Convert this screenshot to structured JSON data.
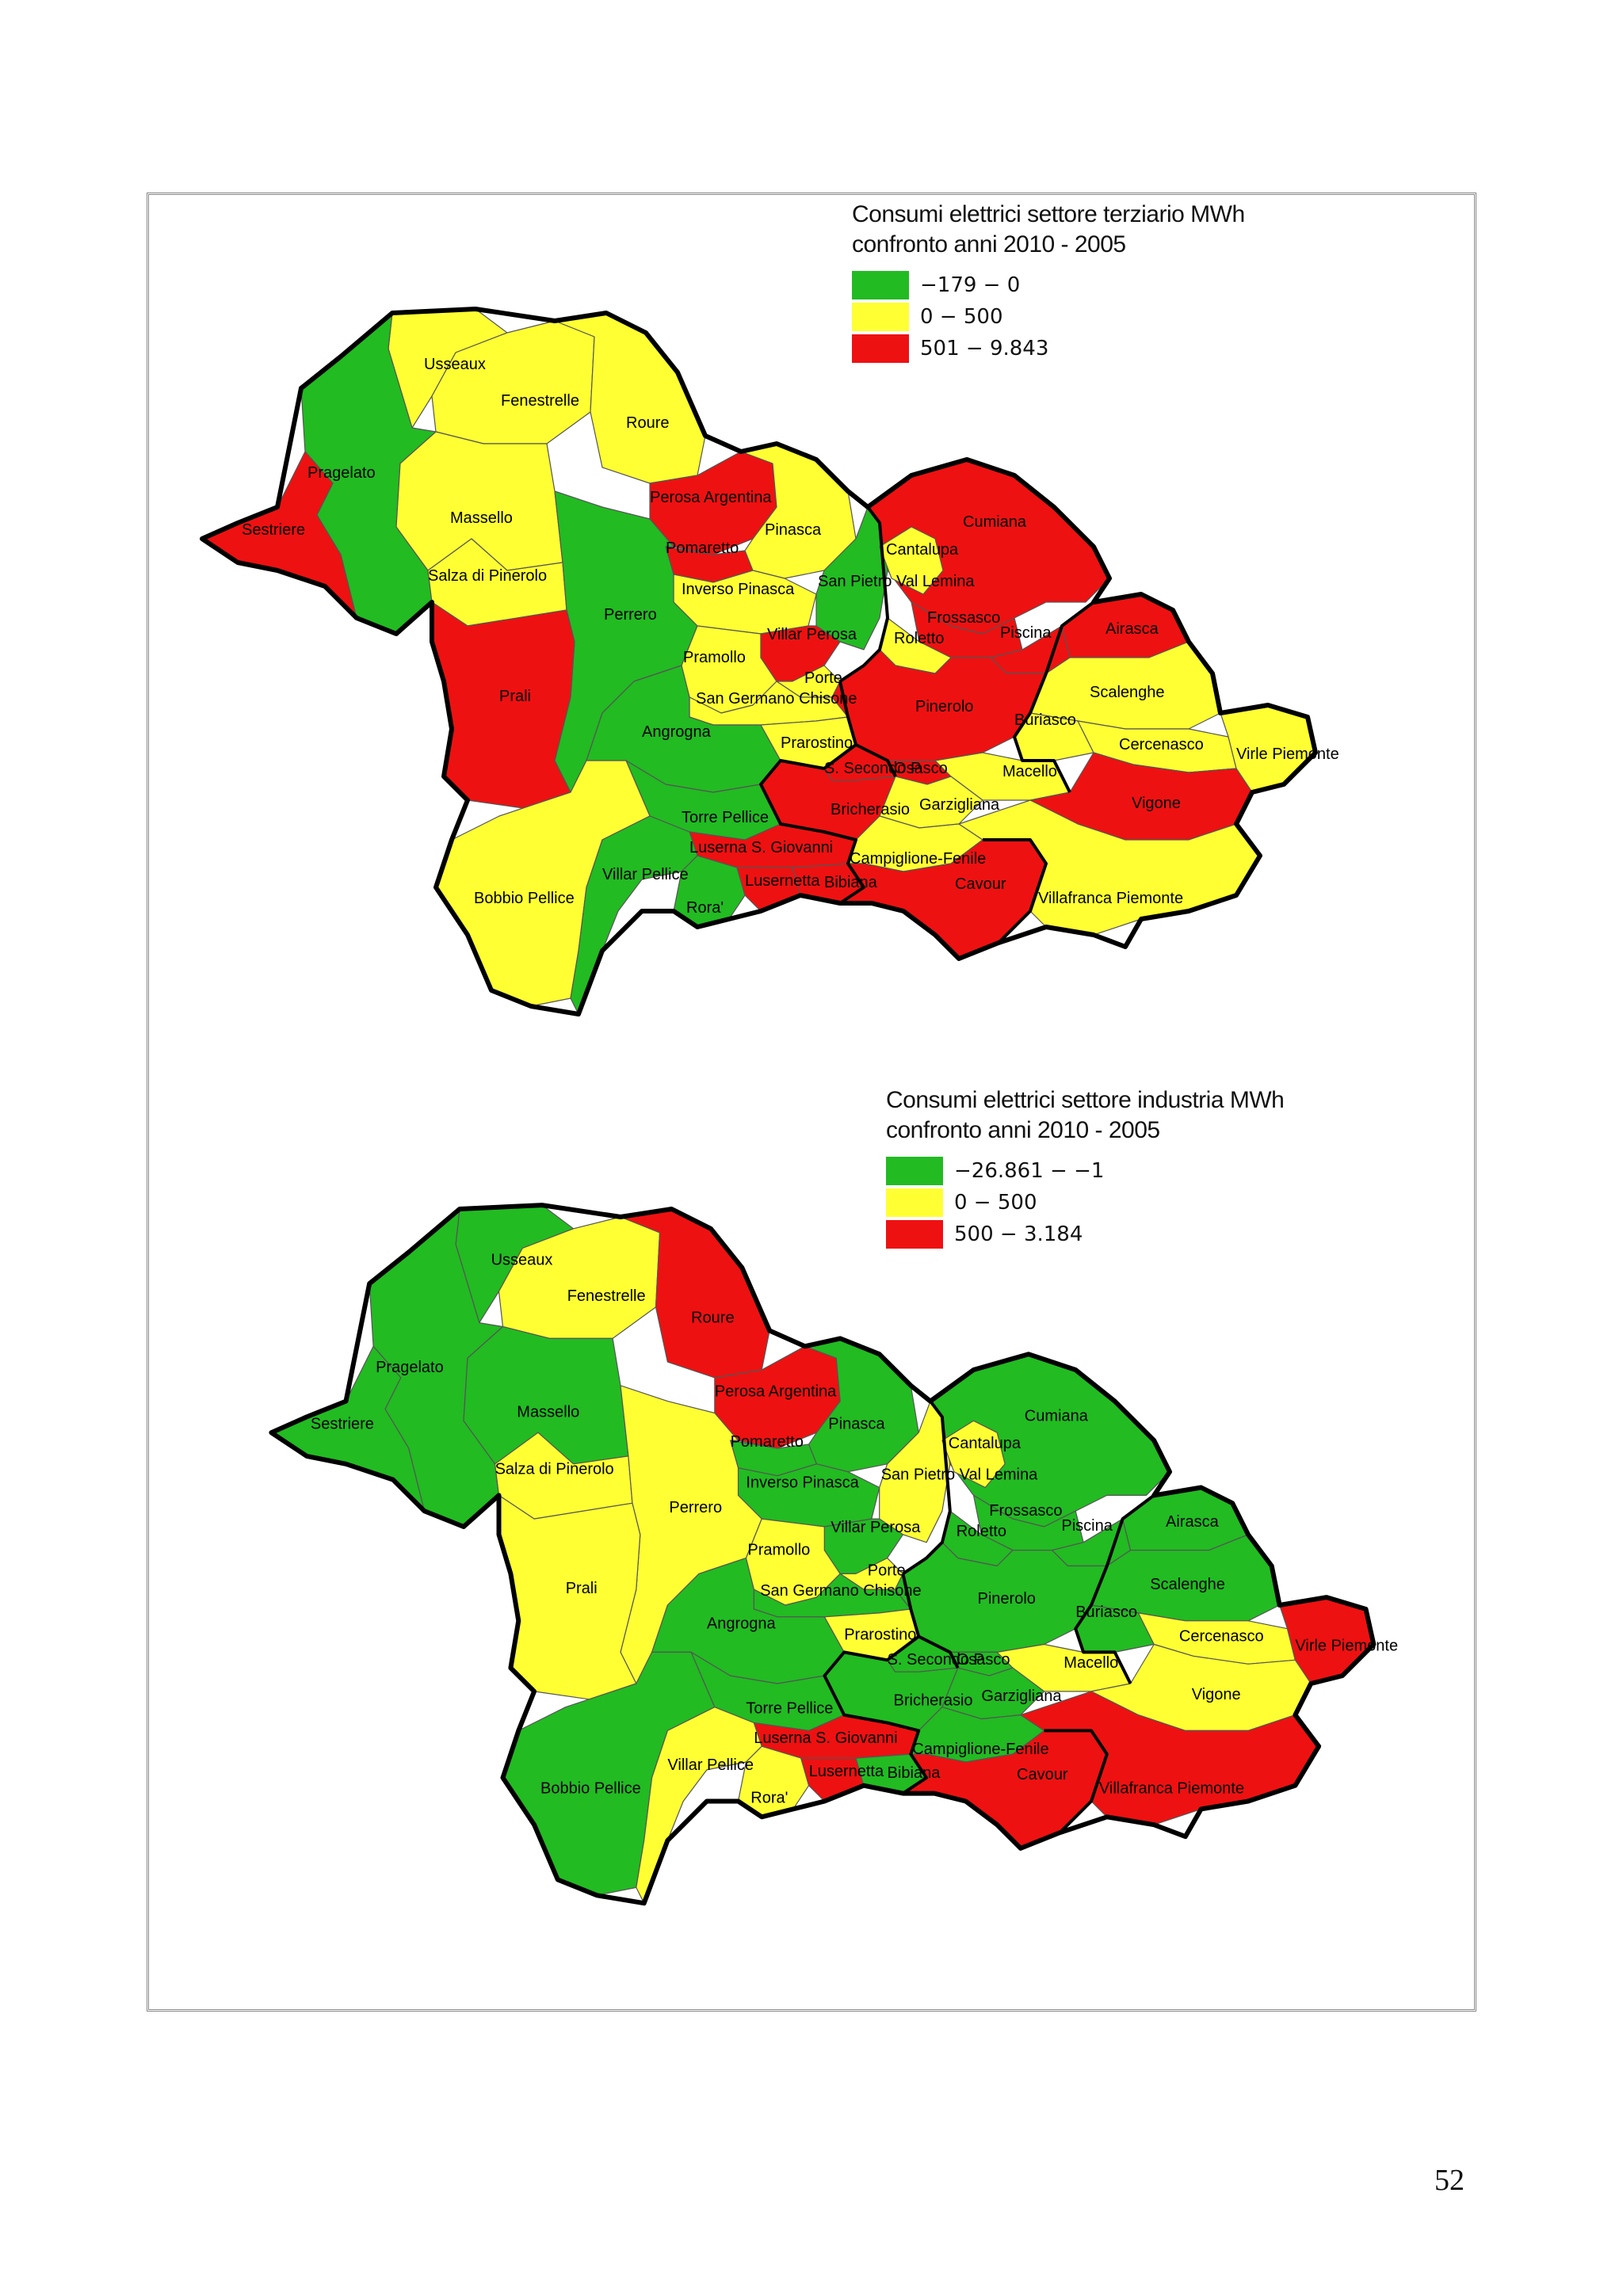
{
  "colors": {
    "green": "#22bb22",
    "yellow": "#ffff33",
    "red": "#ee1111"
  },
  "map1": {
    "title_line1": "Consumi elettrici settore terziario MWh",
    "title_line2": "confronto anni 2010 - 2005",
    "legend": [
      {
        "label": "−179 − 0",
        "color": "green"
      },
      {
        "label": "0 − 500",
        "color": "yellow"
      },
      {
        "label": "501 − 9.843",
        "color": "red"
      }
    ],
    "municipalities": {
      "usseaux": {
        "name": "Usseaux",
        "class": "yellow"
      },
      "fenestrelle": {
        "name": "Fenestrelle",
        "class": "yellow"
      },
      "roure": {
        "name": "Roure",
        "class": "yellow"
      },
      "pragelato": {
        "name": "Pragelato",
        "class": "green"
      },
      "sestriere": {
        "name": "Sestriere",
        "class": "red"
      },
      "massello": {
        "name": "Massello",
        "class": "yellow"
      },
      "salza": {
        "name": "Salza di Pinerolo",
        "class": "yellow"
      },
      "perosa": {
        "name": "Perosa Argentina",
        "class": "red"
      },
      "pomaretto": {
        "name": "Pomaretto",
        "class": "red"
      },
      "pinasca": {
        "name": "Pinasca",
        "class": "yellow"
      },
      "inverso": {
        "name": "Inverso Pinasca",
        "class": "yellow"
      },
      "sanpietro": {
        "name": "San Pietro Val Lemina",
        "class": "green"
      },
      "perrero": {
        "name": "Perrero",
        "class": "green"
      },
      "prali": {
        "name": "Prali",
        "class": "red"
      },
      "pramollo": {
        "name": "Pramollo",
        "class": "yellow"
      },
      "villarperosa": {
        "name": "Villar Perosa",
        "class": "red"
      },
      "porte": {
        "name": "Porte",
        "class": "yellow"
      },
      "sangermano": {
        "name": "San Germano Chisone",
        "class": "yellow"
      },
      "angrogna": {
        "name": "Angrogna",
        "class": "green"
      },
      "prarostino": {
        "name": "Prarostino",
        "class": "yellow"
      },
      "torrepellice": {
        "name": "Torre Pellice",
        "class": "green"
      },
      "luserna": {
        "name": "Luserna S. Giovanni",
        "class": "red"
      },
      "bobbio": {
        "name": "Bobbio Pellice",
        "class": "yellow"
      },
      "villarpellice": {
        "name": "Villar Pellice",
        "class": "green"
      },
      "rora": {
        "name": "Rora'",
        "class": "green"
      },
      "lusernetta": {
        "name": "Lusernetta",
        "class": "red"
      },
      "bibiana": {
        "name": "Bibiana",
        "class": "red"
      },
      "cumiana": {
        "name": "Cumiana",
        "class": "red"
      },
      "cantalupa": {
        "name": "Cantalupa",
        "class": "yellow"
      },
      "frossasco": {
        "name": "Frossasco",
        "class": "red"
      },
      "roletto": {
        "name": "Roletto",
        "class": "yellow"
      },
      "piscina": {
        "name": "Piscina",
        "class": "red"
      },
      "airasca": {
        "name": "Airasca",
        "class": "red"
      },
      "pinerolo": {
        "name": "Pinerolo",
        "class": "red"
      },
      "scalenghe": {
        "name": "Scalenghe",
        "class": "yellow"
      },
      "buriasco": {
        "name": "Buriasco",
        "class": "yellow"
      },
      "cercenasco": {
        "name": "Cercenasco",
        "class": "yellow"
      },
      "virle": {
        "name": "Virle Piemonte",
        "class": "yellow"
      },
      "ssecondo": {
        "name": "S. Secondo P.",
        "class": "red"
      },
      "osasco": {
        "name": "Osasco",
        "class": "red"
      },
      "macello": {
        "name": "Macello",
        "class": "yellow"
      },
      "bricherasio": {
        "name": "Bricherasio",
        "class": "red"
      },
      "garzigliana": {
        "name": "Garzigliana",
        "class": "yellow"
      },
      "vigone": {
        "name": "Vigone",
        "class": "red"
      },
      "campiglione": {
        "name": "Campiglione-Fenile",
        "class": "yellow"
      },
      "cavour": {
        "name": "Cavour",
        "class": "red"
      },
      "villafranca": {
        "name": "Villafranca Piemonte",
        "class": "yellow"
      }
    }
  },
  "map2": {
    "title_line1": "Consumi elettrici settore industria MWh",
    "title_line2": "confronto anni 2010 - 2005",
    "legend": [
      {
        "label": "−26.861 − −1",
        "color": "green"
      },
      {
        "label": "0 − 500",
        "color": "yellow"
      },
      {
        "label": "500 − 3.184",
        "color": "red"
      }
    ],
    "municipalities": {
      "usseaux": {
        "name": "Usseaux",
        "class": "green"
      },
      "fenestrelle": {
        "name": "Fenestrelle",
        "class": "yellow"
      },
      "roure": {
        "name": "Roure",
        "class": "red"
      },
      "pragelato": {
        "name": "Pragelato",
        "class": "green"
      },
      "sestriere": {
        "name": "Sestriere",
        "class": "green"
      },
      "massello": {
        "name": "Massello",
        "class": "green"
      },
      "salza": {
        "name": "Salza di Pinerolo",
        "class": "yellow"
      },
      "perosa": {
        "name": "Perosa Argentina",
        "class": "red"
      },
      "pomaretto": {
        "name": "Pomaretto",
        "class": "green"
      },
      "pinasca": {
        "name": "Pinasca",
        "class": "green"
      },
      "inverso": {
        "name": "Inverso Pinasca",
        "class": "green"
      },
      "sanpietro": {
        "name": "San Pietro Val Lemina",
        "class": "yellow"
      },
      "perrero": {
        "name": "Perrero",
        "class": "yellow"
      },
      "prali": {
        "name": "Prali",
        "class": "yellow"
      },
      "pramollo": {
        "name": "Pramollo",
        "class": "yellow"
      },
      "villarperosa": {
        "name": "Villar Perosa",
        "class": "green"
      },
      "porte": {
        "name": "Porte",
        "class": "yellow"
      },
      "sangermano": {
        "name": "San Germano Chisone",
        "class": "green"
      },
      "angrogna": {
        "name": "Angrogna",
        "class": "green"
      },
      "prarostino": {
        "name": "Prarostino",
        "class": "yellow"
      },
      "torrepellice": {
        "name": "Torre Pellice",
        "class": "green"
      },
      "luserna": {
        "name": "Luserna S. Giovanni",
        "class": "red"
      },
      "bobbio": {
        "name": "Bobbio Pellice",
        "class": "green"
      },
      "villarpellice": {
        "name": "Villar Pellice",
        "class": "yellow"
      },
      "rora": {
        "name": "Rora'",
        "class": "yellow"
      },
      "lusernetta": {
        "name": "Lusernetta",
        "class": "red"
      },
      "bibiana": {
        "name": "Bibiana",
        "class": "green"
      },
      "cumiana": {
        "name": "Cumiana",
        "class": "green"
      },
      "cantalupa": {
        "name": "Cantalupa",
        "class": "yellow"
      },
      "frossasco": {
        "name": "Frossasco",
        "class": "green"
      },
      "roletto": {
        "name": "Roletto",
        "class": "green"
      },
      "piscina": {
        "name": "Piscina",
        "class": "green"
      },
      "airasca": {
        "name": "Airasca",
        "class": "green"
      },
      "pinerolo": {
        "name": "Pinerolo",
        "class": "green"
      },
      "scalenghe": {
        "name": "Scalenghe",
        "class": "green"
      },
      "buriasco": {
        "name": "Buriasco",
        "class": "green"
      },
      "cercenasco": {
        "name": "Cercenasco",
        "class": "yellow"
      },
      "virle": {
        "name": "Virle Piemonte",
        "class": "red"
      },
      "ssecondo": {
        "name": "S. Secondo P.",
        "class": "green"
      },
      "osasco": {
        "name": "Osasco",
        "class": "green"
      },
      "macello": {
        "name": "Macello",
        "class": "yellow"
      },
      "bricherasio": {
        "name": "Bricherasio",
        "class": "green"
      },
      "garzigliana": {
        "name": "Garzigliana",
        "class": "green"
      },
      "vigone": {
        "name": "Vigone",
        "class": "yellow"
      },
      "campiglione": {
        "name": "Campiglione-Fenile",
        "class": "green"
      },
      "cavour": {
        "name": "Cavour",
        "class": "red"
      },
      "villafranca": {
        "name": "Villafranca Piemonte",
        "class": "red"
      }
    }
  },
  "page_number": "52"
}
